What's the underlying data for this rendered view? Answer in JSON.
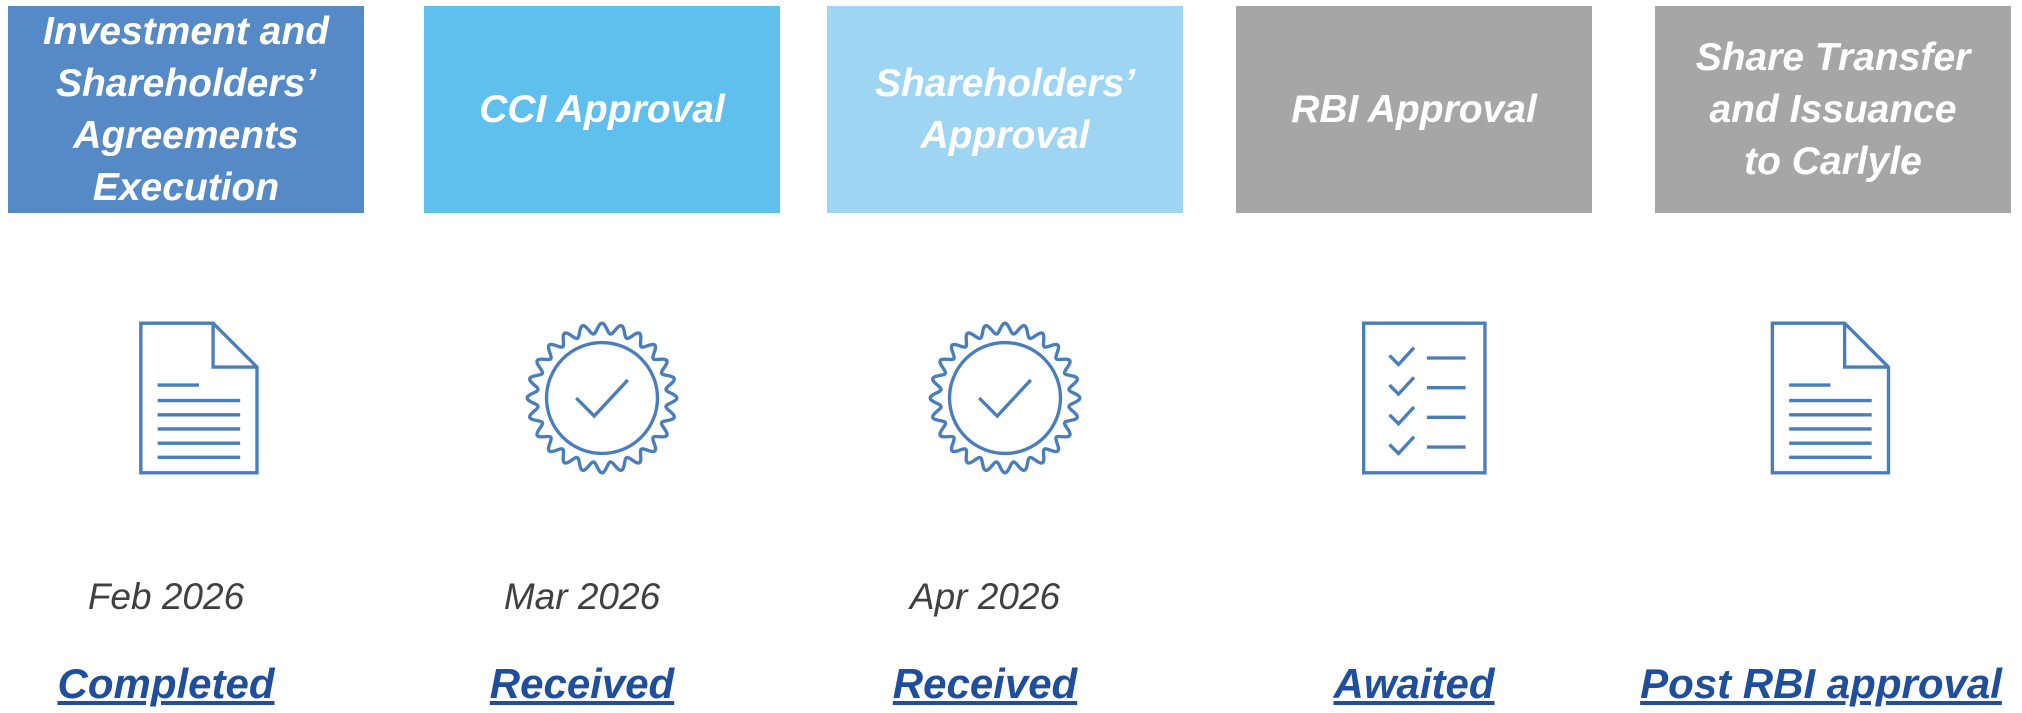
{
  "steps": [
    {
      "title": [
        "Investment and",
        "Shareholders’",
        "Agreements",
        "Execution"
      ],
      "date": "Feb 2026",
      "status": "Completed"
    },
    {
      "title": [
        "CCI Approval"
      ],
      "date": "Mar 2026",
      "status": "Received"
    },
    {
      "title": [
        "Shareholders’",
        "Approval"
      ],
      "date": "Apr 2026",
      "status": "Received"
    },
    {
      "title": [
        "RBI Approval"
      ],
      "status": "Awaited"
    },
    {
      "title": [
        "Share Transfer",
        "and Issuance",
        "to Carlyle"
      ],
      "status": "Post RBI approval"
    }
  ]
}
